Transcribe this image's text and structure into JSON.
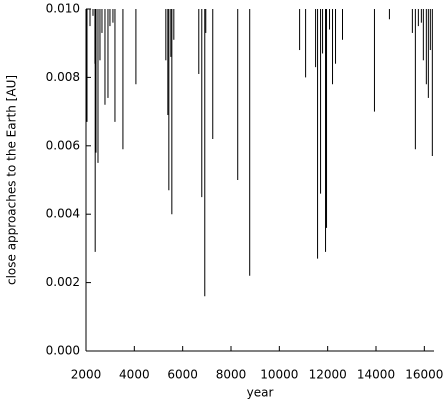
{
  "chart_data": {
    "type": "spike",
    "x_label": "year",
    "y_label": "close approaches to the Earth [AU]",
    "x": [
      2000,
      2041,
      2165,
      2289,
      2370,
      2380,
      2413,
      2496,
      2578,
      2661,
      2785,
      2909,
      2991,
      3115,
      3198,
      3528,
      4065,
      5304,
      5387,
      5428,
      5511,
      5552,
      5634,
      6667,
      6791,
      6915,
      6956,
      7245,
      8278,
      8774,
      10839,
      11087,
      11500,
      11582,
      11706,
      11789,
      11912,
      11953,
      12077,
      12201,
      12325,
      12614,
      13936,
      14555,
      15505,
      15629,
      15753,
      15877,
      15959,
      16083,
      16166,
      16248,
      16331
    ],
    "values": [
      0.0074,
      0.0067,
      0.0095,
      0.0098,
      0.0084,
      0.0029,
      0.0058,
      0.0055,
      0.0085,
      0.0093,
      0.0072,
      0.0074,
      0.0095,
      0.0096,
      0.0067,
      0.0059,
      0.0078,
      0.0085,
      0.0069,
      0.0047,
      0.0086,
      0.004,
      0.0091,
      0.0081,
      0.0045,
      0.0016,
      0.0093,
      0.0062,
      0.005,
      0.0022,
      0.0088,
      0.008,
      0.0083,
      0.0027,
      0.0046,
      0.0087,
      0.0029,
      0.0036,
      0.0094,
      0.0078,
      0.0084,
      0.0091,
      0.007,
      0.0097,
      0.0093,
      0.0059,
      0.0095,
      0.0096,
      0.0085,
      0.0078,
      0.0074,
      0.0088,
      0.0057
    ],
    "color": "#000000",
    "xlim": [
      2000,
      16400
    ],
    "ylim": [
      0,
      0.01
    ],
    "xticks": [
      2000,
      4000,
      6000,
      8000,
      10000,
      12000,
      14000,
      16000
    ],
    "yticks": [
      {
        "value": 0,
        "label": "0.000"
      },
      {
        "value": 0.002,
        "label": "0.002"
      },
      {
        "value": 0.004,
        "label": "0.004"
      },
      {
        "value": 0.006,
        "label": "0.006"
      },
      {
        "value": 0.008,
        "label": "0.008"
      },
      {
        "value": 0.01,
        "label": "0.010"
      }
    ]
  }
}
